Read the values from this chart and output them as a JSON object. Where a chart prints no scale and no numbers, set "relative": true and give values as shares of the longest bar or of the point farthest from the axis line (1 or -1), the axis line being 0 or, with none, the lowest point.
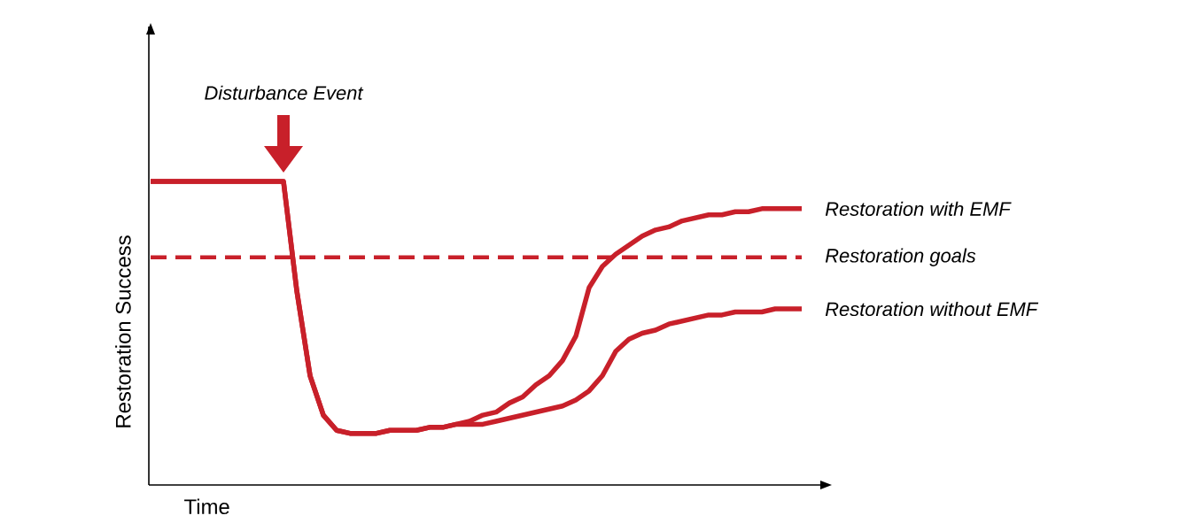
{
  "chart_data": {
    "type": "line",
    "relative": true,
    "xlabel": "Time",
    "ylabel": "Restoration Success",
    "categories": [
      null,
      null,
      null,
      null,
      null,
      null,
      null,
      null,
      null,
      null,
      null,
      null,
      null,
      null,
      null,
      null,
      null,
      null,
      null,
      null,
      null,
      null,
      null,
      null,
      null,
      null,
      null,
      null,
      null,
      null,
      null,
      null,
      null,
      null,
      null,
      null,
      null,
      null,
      null,
      null,
      null,
      null,
      null,
      null,
      null,
      null,
      null,
      null,
      null,
      null
    ],
    "series": [
      {
        "name": "Restoration with EMF",
        "color": "#c8202a",
        "values": [
          1,
          1,
          1,
          1,
          1,
          1,
          1,
          1,
          1,
          1,
          1,
          0.64,
          0.36,
          0.23,
          0.18,
          0.17,
          0.17,
          0.17,
          0.18,
          0.18,
          0.18,
          0.19,
          0.19,
          0.2,
          0.21,
          0.23,
          0.24,
          0.27,
          0.29,
          0.33,
          0.36,
          0.41,
          0.49,
          0.65,
          0.72,
          0.76,
          0.79,
          0.82,
          0.84,
          0.85,
          0.87,
          0.88,
          0.89,
          0.89,
          0.9,
          0.9,
          0.91,
          0.91,
          0.91,
          0.91
        ]
      },
      {
        "name": "Restoration without EMF",
        "color": "#c8202a",
        "values": [
          1,
          1,
          1,
          1,
          1,
          1,
          1,
          1,
          1,
          1,
          1,
          0.64,
          0.36,
          0.23,
          0.18,
          0.17,
          0.17,
          0.17,
          0.18,
          0.18,
          0.18,
          0.19,
          0.19,
          0.2,
          0.2,
          0.2,
          0.21,
          0.22,
          0.23,
          0.24,
          0.25,
          0.26,
          0.28,
          0.31,
          0.36,
          0.44,
          0.48,
          0.5,
          0.51,
          0.53,
          0.54,
          0.55,
          0.56,
          0.56,
          0.57,
          0.57,
          0.57,
          0.58,
          0.58,
          0.58
        ]
      }
    ],
    "ref_lines": [
      {
        "axis": "y",
        "value": 0.75,
        "label": "Restoration goals",
        "color": "#c8202a",
        "line_style": "dashed"
      }
    ],
    "annotations": [
      "Disturbance Event"
    ]
  }
}
